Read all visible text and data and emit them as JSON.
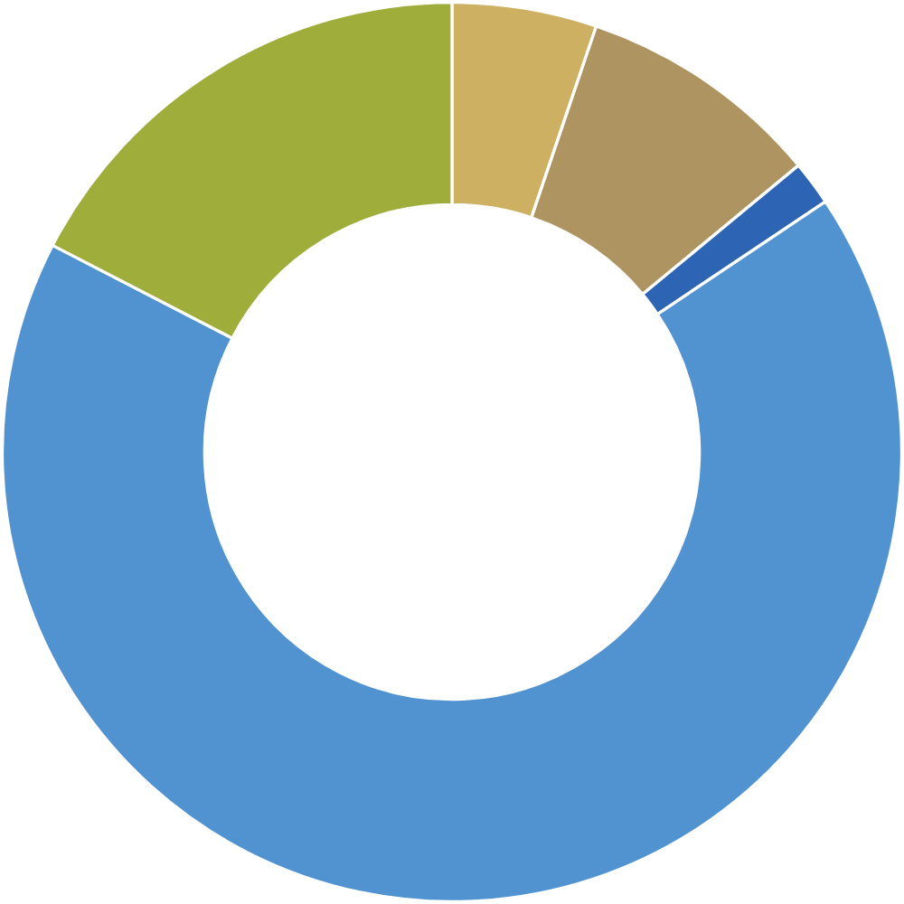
{
  "chart_data": {
    "type": "donut",
    "categories": [
      null,
      null,
      null,
      null,
      null
    ],
    "values": [
      5.2,
      8.8,
      1.6,
      67.0,
      17.4
    ],
    "colors": [
      "#cdb062",
      "#ad9460",
      "#2e64b4",
      "#5192d0",
      "#9fad3a"
    ],
    "legend": false
  }
}
